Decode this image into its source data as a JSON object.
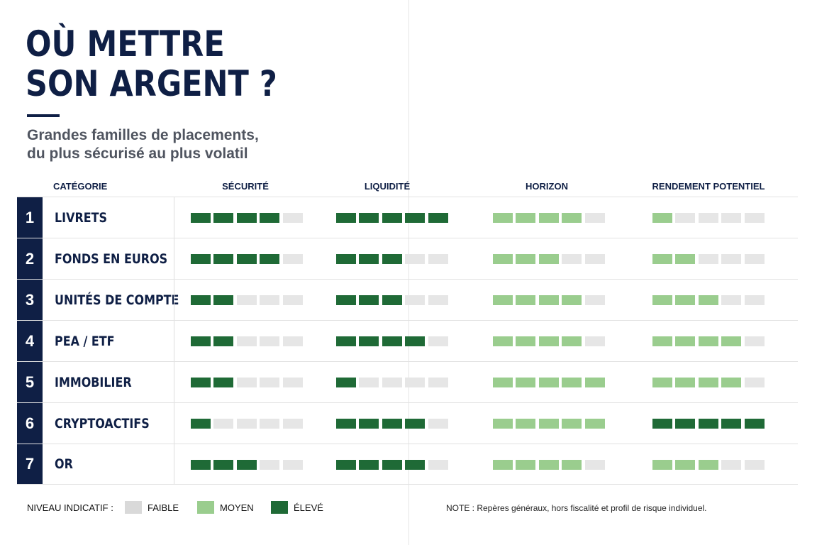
{
  "title": {
    "line1": "OÙ METTRE",
    "line2": "SON ARGENT ?"
  },
  "subtitle": {
    "line1": "Grandes familles de placements,",
    "line2": "du plus sécurisé au plus volatil"
  },
  "headers": {
    "category": "CATÉGORIE",
    "security": "SÉCURITÉ",
    "liquidity": "LIQUIDITÉ",
    "horizon": "HORIZON",
    "return": "RENDEMENT POTENTIEL"
  },
  "scale_max": 5,
  "colors": {
    "navy": "#0f1f45",
    "low": "#e6e6e6",
    "mid": "#9acd8e",
    "high": "#1f6a36"
  },
  "rows": [
    {
      "num": "1",
      "label": "LIVRETS",
      "security": 4,
      "liquidity": 5,
      "horizon": 4,
      "return": 1
    },
    {
      "num": "2",
      "label": "FONDS EN EUROS",
      "security": 4,
      "liquidity": 3,
      "horizon": 3,
      "return": 2
    },
    {
      "num": "3",
      "label": "UNITÉS DE COMPTE",
      "security": 2,
      "liquidity": 3,
      "horizon": 4,
      "return": 3
    },
    {
      "num": "4",
      "label": "PEA / ETF",
      "security": 2,
      "liquidity": 4,
      "horizon": 4,
      "return": 4
    },
    {
      "num": "5",
      "label": "IMMOBILIER",
      "security": 2,
      "liquidity": 1,
      "horizon": 5,
      "return": 4
    },
    {
      "num": "6",
      "label": "CRYPTOACTIFS",
      "security": 1,
      "liquidity": 4,
      "horizon": 5,
      "return": 5
    },
    {
      "num": "7",
      "label": "OR",
      "security": 3,
      "liquidity": 4,
      "horizon": 4,
      "return": 3
    }
  ],
  "column_styles": {
    "security": "high",
    "liquidity": "high",
    "horizon": "mid",
    "return": "mid",
    "return_max_style": "high"
  },
  "legend": {
    "title": "NIVEAU INDICATIF :",
    "low": "FAIBLE",
    "mid": "MOYEN",
    "high": "ÉLEVÉ"
  },
  "note": "NOTE :  Repères généraux, hors fiscalité et profil de risque individuel."
}
